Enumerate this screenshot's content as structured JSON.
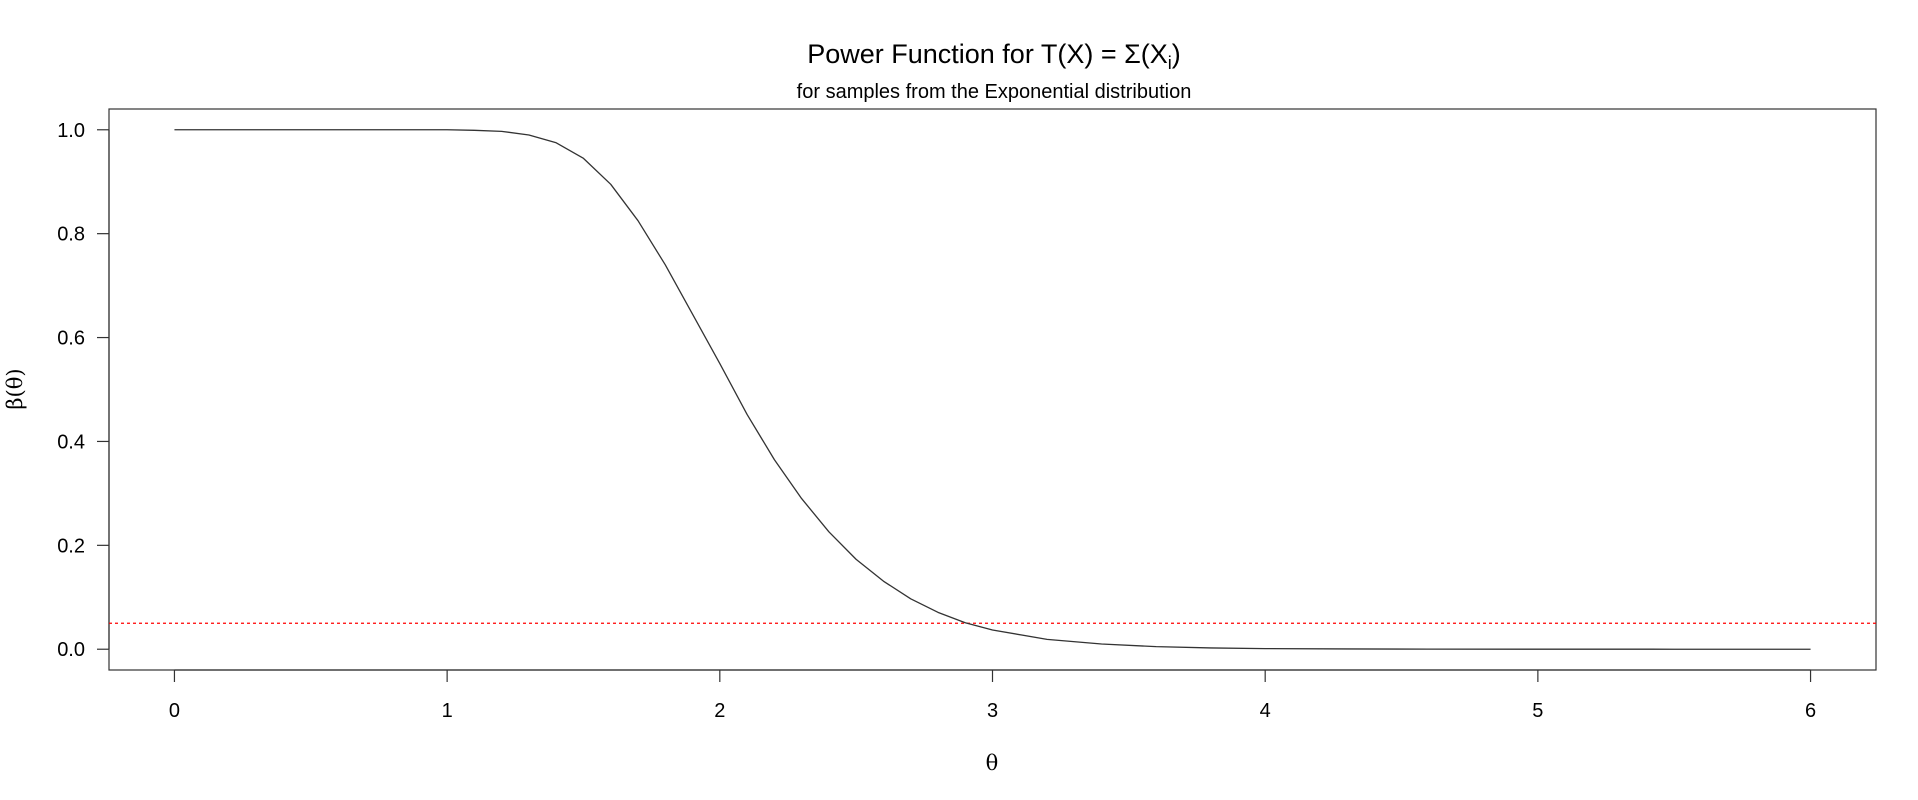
{
  "chart_data": {
    "type": "line",
    "title": "Power Function for T(X) = Σ(X",
    "title_subscript": "i",
    "title_suffix": ")",
    "subtitle": "for samples from the Exponential distribution",
    "xlabel": "θ",
    "ylabel": "β(θ)",
    "xlim": [
      -0.24,
      6.24
    ],
    "ylim": [
      -0.04,
      1.04
    ],
    "x_ticks": [
      0,
      1,
      2,
      3,
      4,
      5,
      6
    ],
    "x_tick_labels": [
      "0",
      "1",
      "2",
      "3",
      "4",
      "5",
      "6"
    ],
    "y_ticks": [
      0.0,
      0.2,
      0.4,
      0.6,
      0.8,
      1.0
    ],
    "y_tick_labels": [
      "0.0",
      "0.2",
      "0.4",
      "0.6",
      "0.8",
      "1.0"
    ],
    "grid": false,
    "series": [
      {
        "color": "#333333",
        "x": [
          0,
          0.5,
          1.0,
          1.1,
          1.2,
          1.3,
          1.4,
          1.5,
          1.6,
          1.7,
          1.8,
          1.9,
          2.0,
          2.1,
          2.2,
          2.3,
          2.4,
          2.5,
          2.6,
          2.7,
          2.8,
          2.9,
          3.0,
          3.2,
          3.4,
          3.6,
          3.8,
          4.0,
          4.3,
          4.6,
          5.0,
          5.5,
          6.0
        ],
        "values": [
          1.0,
          1.0,
          1.0,
          0.999,
          0.997,
          0.99,
          0.975,
          0.945,
          0.895,
          0.825,
          0.74,
          0.645,
          0.55,
          0.452,
          0.365,
          0.29,
          0.226,
          0.173,
          0.131,
          0.097,
          0.071,
          0.051,
          0.037,
          0.019,
          0.01,
          0.005,
          0.0025,
          0.0012,
          0.0005,
          0.0002,
          0.0001,
          0.0,
          0.0
        ]
      }
    ],
    "reference_lines": [
      {
        "y": 0.05,
        "color": "#ff0000",
        "style": "dotted"
      }
    ]
  }
}
